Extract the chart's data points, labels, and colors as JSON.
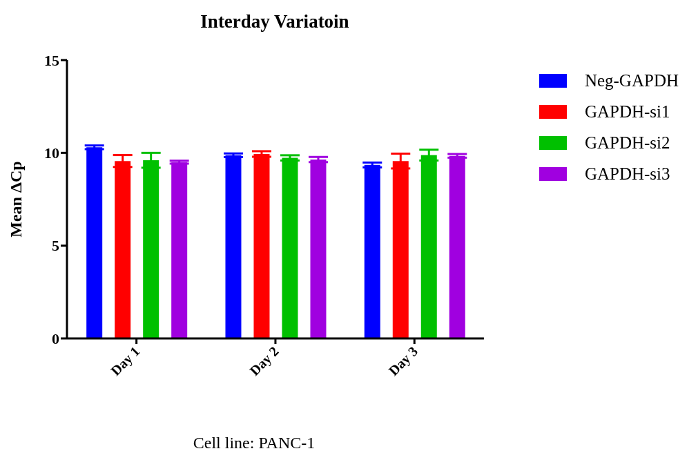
{
  "chart_data": {
    "type": "bar",
    "title": "Interday Variatoin",
    "ylabel": "Mean ΔCp",
    "categories": [
      "Day 1",
      "Day 2",
      "Day 3"
    ],
    "series": [
      {
        "name": "Neg-GAPDH",
        "color": "#0000ff",
        "values": [
          10.3,
          9.87,
          9.35
        ],
        "errors": [
          0.1,
          0.1,
          0.13
        ]
      },
      {
        "name": "GAPDH-si1",
        "color": "#ff0000",
        "values": [
          9.56,
          9.94,
          9.56
        ],
        "errors": [
          0.32,
          0.15,
          0.4
        ]
      },
      {
        "name": "GAPDH-si2",
        "color": "#00c000",
        "values": [
          9.6,
          9.73,
          9.88
        ],
        "errors": [
          0.4,
          0.14,
          0.29
        ]
      },
      {
        "name": "GAPDH-si3",
        "color": "#a000e0",
        "values": [
          9.5,
          9.64,
          9.84
        ],
        "errors": [
          0.08,
          0.14,
          0.1
        ]
      }
    ],
    "ylim": [
      0,
      15
    ],
    "yticks": [
      0,
      5,
      10,
      15
    ],
    "grid": false,
    "legend": "top right",
    "annotations": [
      "Cell line: PANC-1"
    ]
  }
}
